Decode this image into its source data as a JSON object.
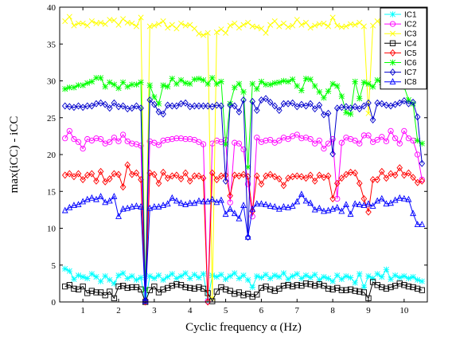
{
  "chart_data": {
    "type": "line",
    "xlabel": "Cyclic frequency α (Hz)",
    "ylabel": "max(iCC) - iCC",
    "xlim": [
      0.35,
      10.65
    ],
    "ylim": [
      0,
      40
    ],
    "x_ticks": [
      1,
      2,
      3,
      4,
      5,
      6,
      7,
      8,
      9,
      10
    ],
    "y_ticks": [
      0,
      5,
      10,
      15,
      20,
      25,
      30,
      35,
      40
    ],
    "grid": false,
    "legend_position": "top-right",
    "x": [
      0.5,
      0.625,
      0.75,
      0.875,
      1.0,
      1.125,
      1.25,
      1.375,
      1.5,
      1.625,
      1.75,
      1.875,
      2.0,
      2.125,
      2.25,
      2.375,
      2.5,
      2.625,
      2.75,
      2.875,
      3.0,
      3.125,
      3.25,
      3.375,
      3.5,
      3.625,
      3.75,
      3.875,
      4.0,
      4.125,
      4.25,
      4.375,
      4.5,
      4.625,
      4.75,
      4.875,
      5.0,
      5.125,
      5.25,
      5.375,
      5.5,
      5.625,
      5.75,
      5.875,
      6.0,
      6.125,
      6.25,
      6.375,
      6.5,
      6.625,
      6.75,
      6.875,
      7.0,
      7.125,
      7.25,
      7.375,
      7.5,
      7.625,
      7.75,
      7.875,
      8.0,
      8.125,
      8.25,
      8.375,
      8.5,
      8.625,
      8.75,
      8.875,
      9.0,
      9.125,
      9.25,
      9.375,
      9.5,
      9.625,
      9.75,
      9.875,
      10.0,
      10.125,
      10.25,
      10.375,
      10.5
    ],
    "series": [
      {
        "name": "IC1",
        "color": "#00ffff",
        "marker": "star",
        "values": [
          4.5,
          4.2,
          3.1,
          3.6,
          3.4,
          3.2,
          3.8,
          3.4,
          2.8,
          3.5,
          3.0,
          2.5,
          3.6,
          3.9,
          3.2,
          3.5,
          3.0,
          3.3,
          0.0,
          3.5,
          3.2,
          3.6,
          3.0,
          3.4,
          3.8,
          3.2,
          3.5,
          3.9,
          3.2,
          3.7,
          3.3,
          3.8,
          0.2,
          3.6,
          3.4,
          3.7,
          3.1,
          3.5,
          3.9,
          3.2,
          3.6,
          3.0,
          2.0,
          3.5,
          3.3,
          3.7,
          3.2,
          3.6,
          3.4,
          3.9,
          3.1,
          3.5,
          3.8,
          3.2,
          3.6,
          3.3,
          3.7,
          3.0,
          3.4,
          3.2,
          2.8,
          3.6,
          3.1,
          3.5,
          3.3,
          2.6,
          3.8,
          2.0,
          3.5,
          3.2,
          3.8,
          3.4,
          4.4,
          3.1,
          3.6,
          3.3,
          3.5,
          3.2,
          3.4,
          3.0,
          2.8
        ]
      },
      {
        "name": "IC2",
        "color": "#ff00ff",
        "marker": "circle",
        "values": [
          22.2,
          23.2,
          22.1,
          21.7,
          20.8,
          22.1,
          21.9,
          22.2,
          22.1,
          21.5,
          21.7,
          22.3,
          21.8,
          22.7,
          21.8,
          21.5,
          21.4,
          21.2,
          0.2,
          21.8,
          21.6,
          21.3,
          21.9,
          22.0,
          22.1,
          22.2,
          22.2,
          22.1,
          22.1,
          22.0,
          21.7,
          21.4,
          0.1,
          21.5,
          21.9,
          21.7,
          22.0,
          13.5,
          21.6,
          21.5,
          20.7,
          16.0,
          11.6,
          22.3,
          21.7,
          21.9,
          22.0,
          21.6,
          21.9,
          22.3,
          22.1,
          22.5,
          22.7,
          22.2,
          22.3,
          22.1,
          21.5,
          21.9,
          20.8,
          21.5,
          22.1,
          14.0,
          21.6,
          22.3,
          22.1,
          21.9,
          21.5,
          22.6,
          22.6,
          21.7,
          22.0,
          22.4,
          21.8,
          23.2,
          22.2,
          21.5,
          23.2,
          22.2,
          21.9,
          20.0,
          16.6
        ]
      },
      {
        "name": "IC3",
        "color": "#ffff00",
        "marker": "x",
        "values": [
          38.1,
          38.7,
          37.5,
          37.8,
          37.8,
          37.5,
          38.1,
          37.8,
          37.9,
          37.7,
          38.3,
          38.2,
          37.6,
          38.4,
          37.9,
          37.8,
          37.4,
          38.6,
          0.1,
          37.4,
          37.5,
          37.7,
          38.1,
          37.2,
          37.6,
          37.1,
          37.8,
          37.5,
          37.6,
          37.1,
          36.4,
          36.2,
          36.5,
          0.5,
          36.6,
          37.0,
          36.5,
          37.5,
          37.8,
          37.2,
          37.6,
          37.9,
          37.4,
          37.3,
          37.1,
          36.5,
          37.6,
          38.1,
          37.4,
          37.8,
          37.3,
          37.5,
          38.3,
          37.6,
          37.9,
          37.2,
          37.5,
          37.7,
          37.8,
          37.4,
          38.6,
          37.5,
          37.3,
          37.4,
          37.7,
          37.6,
          37.9,
          37.4,
          25.6,
          37.5,
          38.1,
          37.9,
          37.6,
          37.3,
          37.7,
          37.4,
          37.6,
          37.8,
          37.5,
          37.4,
          37.6
        ]
      },
      {
        "name": "IC4",
        "color": "#000000",
        "marker": "square",
        "values": [
          2.1,
          2.3,
          1.8,
          1.7,
          2.1,
          1.2,
          1.5,
          1.3,
          1.3,
          0.9,
          1.4,
          0.5,
          2.1,
          2.2,
          1.9,
          2.0,
          2.0,
          1.7,
          0.0,
          1.6,
          2.1,
          1.3,
          1.7,
          1.9,
          2.2,
          2.4,
          2.3,
          2.0,
          1.9,
          1.8,
          2.0,
          1.8,
          1.2,
          0.1,
          1.4,
          2.0,
          1.7,
          1.5,
          1.1,
          1.3,
          0.9,
          1.1,
          0.7,
          1.0,
          1.9,
          2.1,
          1.7,
          1.5,
          1.8,
          2.2,
          2.3,
          2.1,
          2.3,
          2.2,
          2.5,
          2.4,
          2.2,
          2.4,
          2.2,
          1.8,
          1.7,
          1.9,
          1.6,
          1.6,
          1.7,
          1.5,
          1.4,
          1.3,
          0.5,
          2.7,
          2.3,
          2.0,
          1.8,
          2.0,
          2.2,
          2.5,
          2.3,
          2.1,
          2.0,
          1.8,
          1.6
        ]
      },
      {
        "name": "IC5",
        "color": "#ff0000",
        "marker": "diamond",
        "values": [
          17.2,
          17.4,
          17.0,
          17.4,
          16.6,
          17.2,
          17.4,
          16.4,
          17.7,
          16.3,
          16.7,
          17.4,
          17.3,
          15.6,
          18.6,
          17.3,
          17.5,
          16.6,
          0.0,
          17.5,
          17.3,
          16.1,
          17.6,
          16.8,
          17.1,
          17.2,
          16.7,
          17.5,
          16.4,
          17.1,
          17.1,
          16.8,
          0.0,
          17.5,
          16.6,
          17.1,
          17.2,
          14.4,
          17.2,
          17.1,
          17.3,
          17.0,
          12.3,
          17.1,
          16.0,
          17.1,
          17.3,
          17.0,
          16.7,
          15.8,
          16.8,
          17.0,
          17.1,
          17.0,
          16.8,
          17.2,
          16.4,
          17.2,
          16.9,
          17.1,
          14.0,
          16.1,
          16.8,
          17.3,
          17.6,
          17.5,
          16.1,
          14.0,
          12.2,
          16.6,
          16.6,
          17.7,
          16.8,
          17.4,
          17.2,
          18.2,
          17.2,
          17.5,
          16.9,
          16.2,
          16.4
        ]
      },
      {
        "name": "IC6",
        "color": "#00ff00",
        "marker": "star",
        "values": [
          28.9,
          29.1,
          29.1,
          29.4,
          29.4,
          29.7,
          29.9,
          30.4,
          30.4,
          29.2,
          29.8,
          29.5,
          29.0,
          29.8,
          29.2,
          29.5,
          29.5,
          29.8,
          1.7,
          29.4,
          27.8,
          26.9,
          29.4,
          29.2,
          30.3,
          29.6,
          30.1,
          29.7,
          29.6,
          30.2,
          30.3,
          30.1,
          29.6,
          30.4,
          29.6,
          29.9,
          21.4,
          26.9,
          29.1,
          29.6,
          28.5,
          18.3,
          29.6,
          28.9,
          29.9,
          29.5,
          29.5,
          29.7,
          29.8,
          30.0,
          29.9,
          30.2,
          29.3,
          28.7,
          30.3,
          30.2,
          29.3,
          28.5,
          27.7,
          28.6,
          29.6,
          29.3,
          27.9,
          25.7,
          25.5,
          29.9,
          27.6,
          29.8,
          29.6,
          29.2,
          30.1,
          29.8,
          29.8,
          29.8,
          29.8,
          29.5,
          29.2,
          27.4,
          26.9,
          21.9,
          21.5
        ]
      },
      {
        "name": "IC7",
        "color": "#0000cc",
        "marker": "diamond",
        "values": [
          26.6,
          26.5,
          26.4,
          26.6,
          26.4,
          26.6,
          26.6,
          26.9,
          27.0,
          26.8,
          26.3,
          27.0,
          26.5,
          26.6,
          26.2,
          26.3,
          26.6,
          26.3,
          0.2,
          27.4,
          26.8,
          25.8,
          25.5,
          26.7,
          26.6,
          26.6,
          26.9,
          27.0,
          26.5,
          26.6,
          26.6,
          26.6,
          26.6,
          26.5,
          26.7,
          26.6,
          16.4,
          26.7,
          26.6,
          25.8,
          27.4,
          8.8,
          27.2,
          26.0,
          27.4,
          27.6,
          27.1,
          26.6,
          26.0,
          26.9,
          26.9,
          27.0,
          26.5,
          26.8,
          26.6,
          26.9,
          26.2,
          26.7,
          25.4,
          25.6,
          20.1,
          26.3,
          26.4,
          26.5,
          26.3,
          26.5,
          26.2,
          26.6,
          27.0,
          24.7,
          27.0,
          26.9,
          26.7,
          26.6,
          26.8,
          27.0,
          27.3,
          26.9,
          27.1,
          25.1,
          18.8
        ]
      },
      {
        "name": "IC8",
        "color": "#0000ff",
        "marker": "triangle",
        "values": [
          12.4,
          12.8,
          13.1,
          13.2,
          13.6,
          13.9,
          14.1,
          13.9,
          14.3,
          13.5,
          13.7,
          14.3,
          11.6,
          12.6,
          12.7,
          12.9,
          13.0,
          12.9,
          0.1,
          12.7,
          12.9,
          12.9,
          13.1,
          13.3,
          14.1,
          13.7,
          13.4,
          13.2,
          13.4,
          13.4,
          13.7,
          13.6,
          13.6,
          13.9,
          13.5,
          13.8,
          11.9,
          12.6,
          12.0,
          11.3,
          13.1,
          8.8,
          12.6,
          13.3,
          13.3,
          13.2,
          13.0,
          12.9,
          12.6,
          12.9,
          12.8,
          13.0,
          13.6,
          14.6,
          13.7,
          13.4,
          12.5,
          12.7,
          12.3,
          12.4,
          12.6,
          12.8,
          12.3,
          13.2,
          11.9,
          13.3,
          13.2,
          13.1,
          13.3,
          13.0,
          13.7,
          14.0,
          13.3,
          13.4,
          13.8,
          14.1,
          14.0,
          13.9,
          12.0,
          10.5,
          10.5
        ]
      }
    ]
  }
}
